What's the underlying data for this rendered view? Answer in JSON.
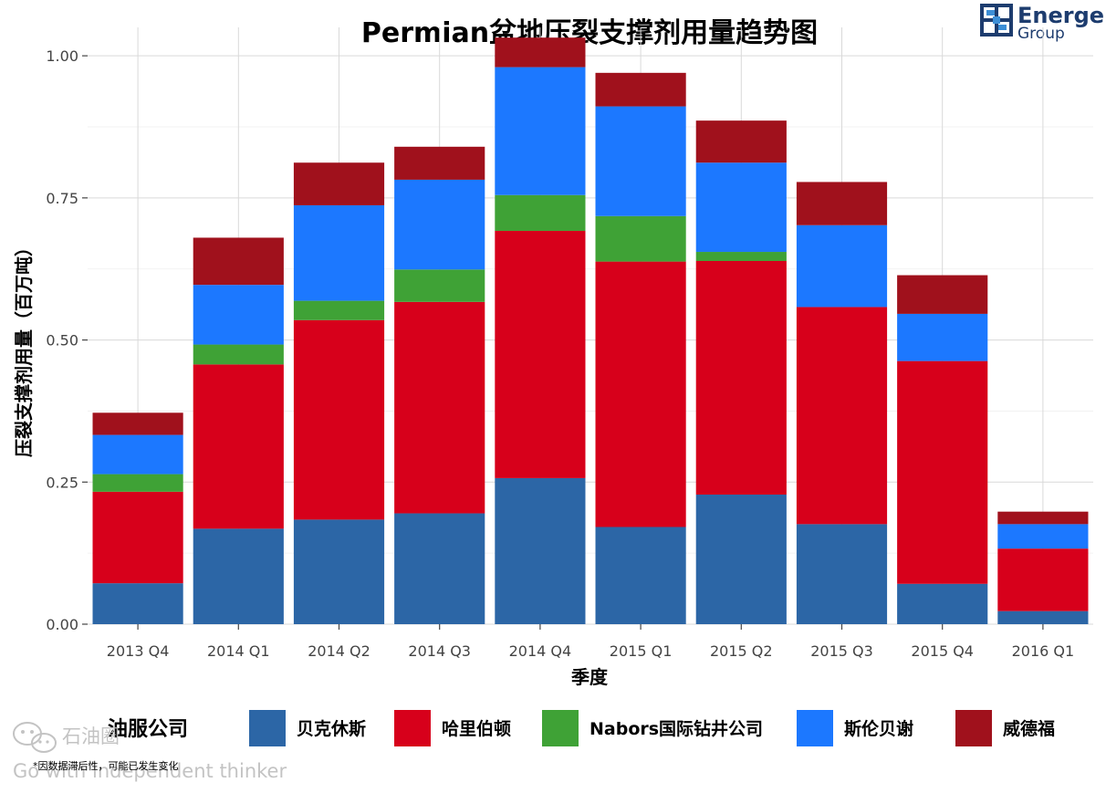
{
  "brand": {
    "name": "Energent",
    "sub": "Group",
    "logo_icon": "energent-logo-icon",
    "logo_color": "#1d3c6e",
    "logo_accent": "#3d8fd6"
  },
  "watermark": {
    "brand": "石油圈",
    "slogan": "Go with independent thinker",
    "icon": "wechat-icon"
  },
  "footnote": "*因数据滞后性，可能已发生变化",
  "legend": {
    "title": "油服公司"
  },
  "chart_data": {
    "type": "bar",
    "stacked": true,
    "title": "Permian盆地压裂支撑剂用量趋势图",
    "xlabel": "季度",
    "ylabel": "压裂支撑剂用量（百万吨）",
    "ylim": [
      0,
      1.05
    ],
    "yticks": [
      0.0,
      0.25,
      0.5,
      0.75,
      1.0
    ],
    "ytick_labels": [
      "0.00",
      "0.25",
      "0.50",
      "0.75",
      "1.00"
    ],
    "grid": true,
    "legend_position": "bottom",
    "categories": [
      "2013 Q4",
      "2014 Q1",
      "2014 Q2",
      "2014 Q3",
      "2014 Q4",
      "2015 Q1",
      "2015 Q2",
      "2015 Q3",
      "2015 Q4",
      "2016 Q1"
    ],
    "series": [
      {
        "name": "贝克休斯",
        "color": "#2c66a6",
        "values": [
          0.072,
          0.168,
          0.184,
          0.195,
          0.257,
          0.171,
          0.228,
          0.176,
          0.071,
          0.023
        ]
      },
      {
        "name": "哈里伯顿",
        "color": "#d7001b",
        "values": [
          0.161,
          0.289,
          0.351,
          0.372,
          0.435,
          0.467,
          0.411,
          0.382,
          0.392,
          0.11
        ]
      },
      {
        "name": "Nabors国际钻井公司",
        "color": "#3fa236",
        "values": [
          0.031,
          0.035,
          0.034,
          0.057,
          0.063,
          0.08,
          0.016,
          0.0,
          0.0,
          0.0
        ]
      },
      {
        "name": "斯伦贝谢",
        "color": "#1c78ff",
        "values": [
          0.069,
          0.105,
          0.168,
          0.158,
          0.225,
          0.193,
          0.157,
          0.144,
          0.083,
          0.043
        ]
      },
      {
        "name": "威德福",
        "color": "#a0111c",
        "values": [
          0.039,
          0.083,
          0.075,
          0.058,
          0.052,
          0.059,
          0.074,
          0.076,
          0.068,
          0.022
        ]
      }
    ]
  }
}
